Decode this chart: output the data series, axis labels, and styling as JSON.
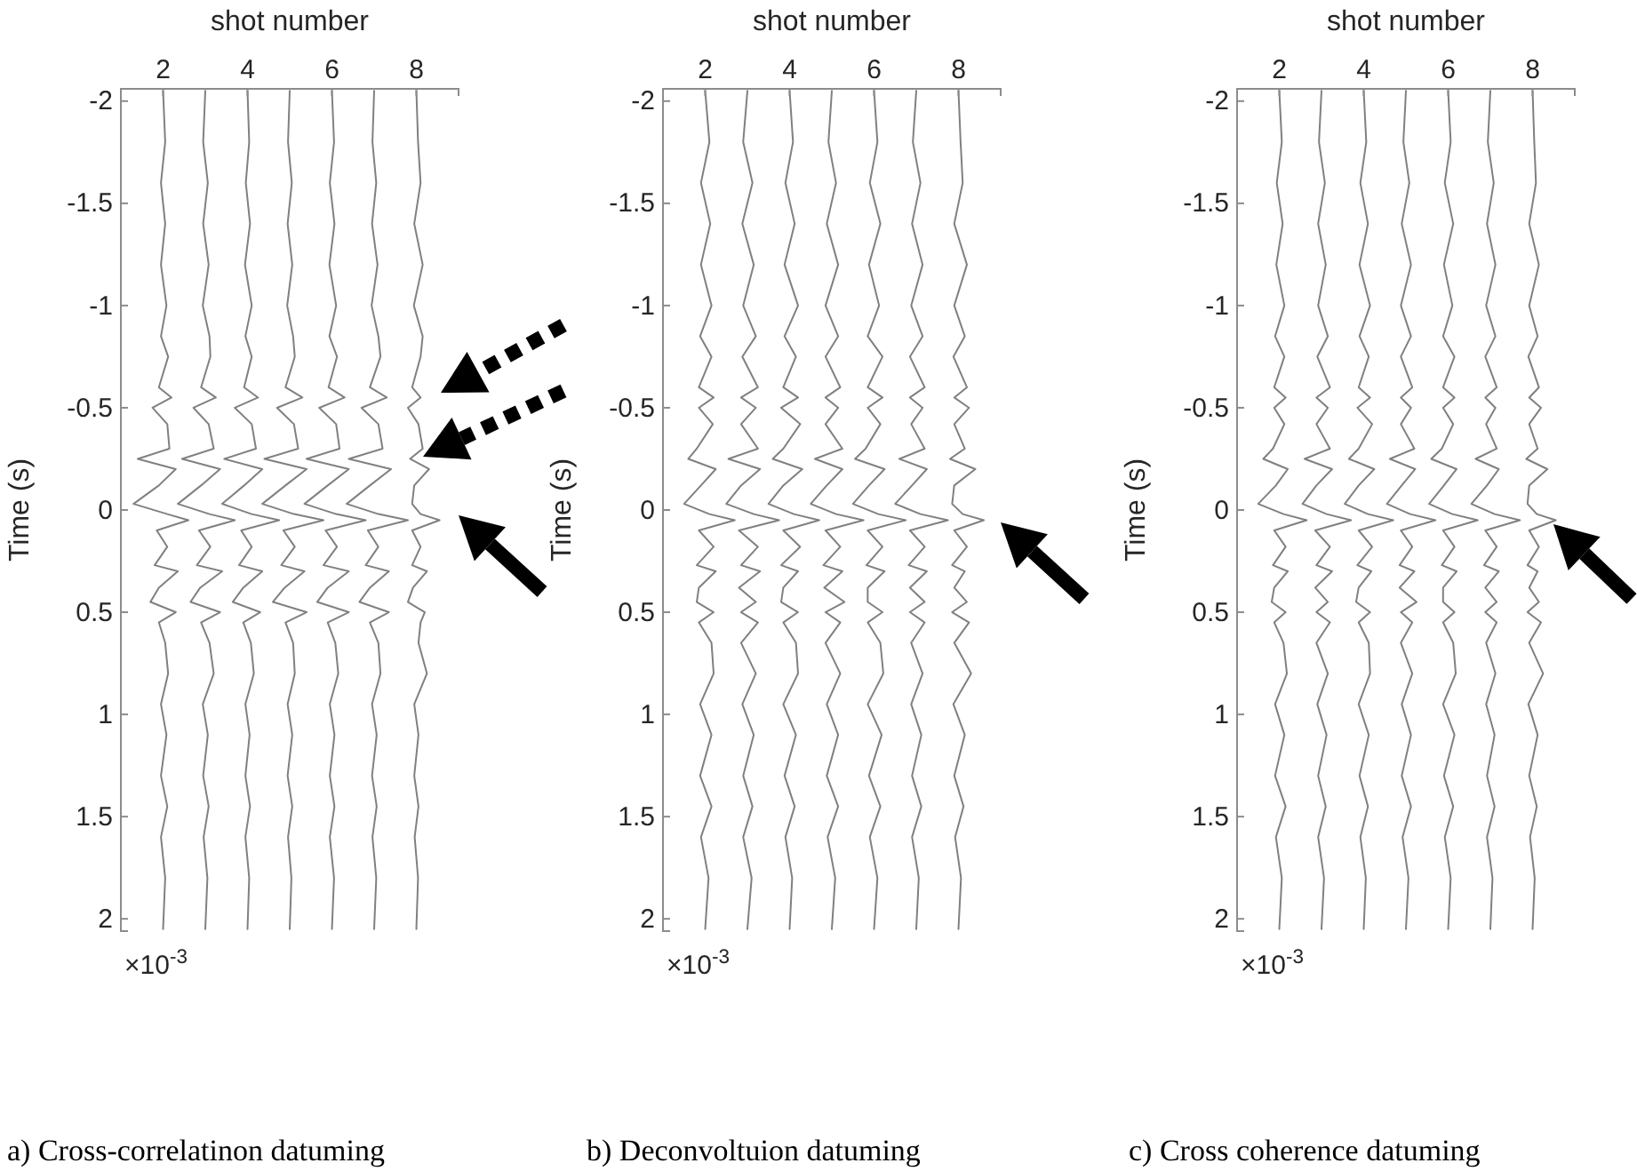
{
  "chart_data": [
    {
      "type": "line",
      "xlabel": "shot number",
      "ylabel": "Time (s)",
      "xlim": [
        1,
        9
      ],
      "xticks": [
        2,
        4,
        6,
        8
      ],
      "ylim": [
        2.06,
        -2.06
      ],
      "yticks": [
        -2,
        -1.5,
        -1,
        -0.5,
        0,
        0.5,
        1,
        1.5,
        2
      ],
      "annotations": [
        "×10$^{-3}$",
        "a) Cross-correlatinon datuming"
      ],
      "series": [
        {
          "color": "#808080",
          "x": [
            2,
            2.05,
            1.95,
            2.05,
            1.95,
            2.08,
            1.95,
            2.12,
            1.9,
            2.2,
            1.75,
            2.1,
            2.15,
            1.4,
            2.3,
            1.9,
            1.3,
            2.1,
            2.6,
            1.85,
            2.1,
            1.8,
            2.35,
            1.9,
            1.7,
            2.3,
            1.9,
            2.05,
            2.12,
            1.95,
            2.08,
            1.95,
            2.1,
            1.95,
            2.05,
            2
          ],
          "values": [
            -2.05,
            -1.8,
            -1.6,
            -1.4,
            -1.2,
            -1.0,
            -0.85,
            -0.75,
            -0.6,
            -0.55,
            -0.5,
            -0.42,
            -0.3,
            -0.25,
            -0.2,
            -0.12,
            -0.03,
            0.02,
            0.05,
            0.1,
            0.18,
            0.27,
            0.3,
            0.38,
            0.45,
            0.5,
            0.55,
            0.65,
            0.8,
            0.95,
            1.1,
            1.3,
            1.45,
            1.6,
            1.8,
            2.05
          ]
        },
        {
          "color": "#808080",
          "x": [
            3,
            2.95,
            3.06,
            2.95,
            3.08,
            2.94,
            3.1,
            3.12,
            2.9,
            3.25,
            2.72,
            3.08,
            3.2,
            2.45,
            3.35,
            2.9,
            2.35,
            3.1,
            3.7,
            2.85,
            3.12,
            2.8,
            3.4,
            2.88,
            2.65,
            3.35,
            2.9,
            3.1,
            3.2,
            2.94,
            3.06,
            2.95,
            3.08,
            2.96,
            3.05,
            3
          ],
          "values": [
            -2.05,
            -1.8,
            -1.6,
            -1.4,
            -1.2,
            -1.0,
            -0.85,
            -0.75,
            -0.6,
            -0.55,
            -0.5,
            -0.42,
            -0.3,
            -0.25,
            -0.2,
            -0.12,
            -0.03,
            0.02,
            0.05,
            0.1,
            0.18,
            0.27,
            0.3,
            0.38,
            0.45,
            0.5,
            0.55,
            0.65,
            0.8,
            0.95,
            1.1,
            1.3,
            1.45,
            1.6,
            1.8,
            2.05
          ]
        },
        {
          "color": "#808080",
          "x": [
            4,
            4.04,
            3.96,
            4.06,
            3.94,
            4.1,
            3.95,
            4.1,
            3.92,
            4.25,
            3.7,
            4.1,
            4.2,
            3.45,
            4.35,
            3.92,
            3.4,
            4.1,
            4.75,
            3.85,
            4.1,
            3.8,
            4.35,
            3.9,
            3.65,
            4.3,
            3.9,
            4.08,
            4.15,
            3.95,
            4.05,
            3.95,
            4.06,
            3.95,
            4.04,
            4
          ],
          "values": [
            -2.05,
            -1.8,
            -1.6,
            -1.4,
            -1.2,
            -1.0,
            -0.85,
            -0.75,
            -0.6,
            -0.55,
            -0.5,
            -0.42,
            -0.3,
            -0.25,
            -0.2,
            -0.12,
            -0.03,
            0.02,
            0.05,
            0.1,
            0.18,
            0.27,
            0.3,
            0.38,
            0.45,
            0.5,
            0.55,
            0.65,
            0.8,
            0.95,
            1.1,
            1.3,
            1.45,
            1.6,
            1.8,
            2.05
          ]
        },
        {
          "color": "#808080",
          "x": [
            5,
            4.96,
            5.05,
            4.95,
            5.06,
            4.94,
            5.08,
            5.12,
            4.9,
            5.3,
            4.7,
            5.1,
            5.2,
            4.4,
            5.4,
            4.9,
            4.35,
            5.1,
            5.8,
            4.85,
            5.12,
            4.8,
            5.35,
            4.88,
            4.6,
            5.4,
            4.9,
            5.08,
            5.12,
            4.95,
            5.06,
            4.95,
            5.06,
            4.96,
            5.04,
            5
          ],
          "values": [
            -2.05,
            -1.8,
            -1.6,
            -1.4,
            -1.2,
            -1.0,
            -0.85,
            -0.75,
            -0.6,
            -0.55,
            -0.5,
            -0.42,
            -0.3,
            -0.25,
            -0.2,
            -0.12,
            -0.03,
            0.02,
            0.05,
            0.1,
            0.18,
            0.27,
            0.3,
            0.38,
            0.45,
            0.5,
            0.55,
            0.65,
            0.8,
            0.95,
            1.1,
            1.3,
            1.45,
            1.6,
            1.8,
            2.05
          ]
        },
        {
          "color": "#808080",
          "x": [
            6,
            6.05,
            5.95,
            6.06,
            5.94,
            6.1,
            5.94,
            6.12,
            5.92,
            6.3,
            5.7,
            6.1,
            6.18,
            5.4,
            6.4,
            5.9,
            5.35,
            6.1,
            6.8,
            5.85,
            6.12,
            5.8,
            6.4,
            5.9,
            5.65,
            6.4,
            5.9,
            6.08,
            6.15,
            5.95,
            6.06,
            5.95,
            6.06,
            5.95,
            6.05,
            6
          ],
          "values": [
            -2.05,
            -1.8,
            -1.6,
            -1.4,
            -1.2,
            -1.0,
            -0.85,
            -0.75,
            -0.6,
            -0.55,
            -0.5,
            -0.42,
            -0.3,
            -0.25,
            -0.2,
            -0.12,
            -0.03,
            0.02,
            0.05,
            0.1,
            0.18,
            0.27,
            0.3,
            0.38,
            0.45,
            0.5,
            0.55,
            0.65,
            0.8,
            0.95,
            1.1,
            1.3,
            1.45,
            1.6,
            1.8,
            2.05
          ]
        },
        {
          "color": "#808080",
          "x": [
            7,
            6.96,
            7.05,
            6.95,
            7.08,
            6.94,
            7.1,
            7.15,
            6.9,
            7.3,
            6.7,
            7.1,
            7.2,
            6.4,
            7.4,
            6.9,
            6.35,
            7.1,
            7.8,
            6.85,
            7.1,
            6.8,
            7.35,
            6.9,
            6.65,
            7.35,
            6.9,
            7.1,
            7.15,
            6.95,
            7.06,
            6.95,
            7.06,
            6.96,
            7.05,
            7
          ],
          "values": [
            -2.05,
            -1.8,
            -1.6,
            -1.4,
            -1.2,
            -1.0,
            -0.85,
            -0.75,
            -0.6,
            -0.55,
            -0.5,
            -0.42,
            -0.3,
            -0.25,
            -0.2,
            -0.12,
            -0.03,
            0.02,
            0.05,
            0.1,
            0.18,
            0.27,
            0.3,
            0.38,
            0.45,
            0.5,
            0.55,
            0.65,
            0.8,
            0.95,
            1.1,
            1.3,
            1.45,
            1.6,
            1.8,
            2.05
          ]
        },
        {
          "color": "#808080",
          "x": [
            8,
            8.04,
            8.1,
            7.95,
            8.15,
            7.94,
            8.15,
            8.1,
            7.9,
            8.1,
            7.8,
            8.05,
            8.15,
            7.85,
            8.3,
            7.95,
            7.9,
            8.1,
            8.55,
            7.9,
            8.1,
            7.9,
            8.25,
            7.92,
            7.8,
            8.2,
            8.1,
            8.05,
            8.25,
            7.95,
            8.05,
            7.95,
            8.05,
            7.96,
            8.04,
            8
          ],
          "values": [
            -2.05,
            -1.8,
            -1.6,
            -1.4,
            -1.2,
            -1.0,
            -0.85,
            -0.75,
            -0.6,
            -0.55,
            -0.5,
            -0.42,
            -0.3,
            -0.25,
            -0.2,
            -0.12,
            -0.03,
            0.02,
            0.05,
            0.1,
            0.18,
            0.27,
            0.3,
            0.38,
            0.45,
            0.5,
            0.55,
            0.65,
            0.8,
            0.95,
            1.1,
            1.3,
            1.45,
            1.6,
            1.8,
            2.05
          ]
        }
      ]
    },
    {
      "type": "line",
      "xlabel": "shot number",
      "ylabel": "Time (s)",
      "xlim": [
        1,
        9
      ],
      "xticks": [
        2,
        4,
        6,
        8
      ],
      "ylim": [
        2.06,
        -2.06
      ],
      "yticks": [
        -2,
        -1.5,
        -1,
        -0.5,
        0,
        0.5,
        1,
        1.5,
        2
      ],
      "annotations": [
        "×10$^{-3}$",
        "b) Deconvoltuion datuming"
      ],
      "series": [
        {
          "color": "#808080",
          "x": [
            2,
            2.1,
            1.9,
            2.12,
            1.9,
            2.15,
            1.88,
            2.15,
            1.85,
            2.2,
            1.85,
            2.18,
            1.8,
            1.6,
            2.25,
            1.9,
            1.5,
            2.1,
            2.7,
            1.85,
            2.2,
            1.8,
            2.25,
            1.85,
            1.8,
            2.2,
            1.85,
            2.15,
            2.2,
            1.88,
            2.15,
            1.88,
            2.15,
            1.9,
            2.08,
            2
          ],
          "values": [
            -2.05,
            -1.8,
            -1.6,
            -1.4,
            -1.2,
            -1.0,
            -0.85,
            -0.75,
            -0.6,
            -0.55,
            -0.5,
            -0.42,
            -0.3,
            -0.25,
            -0.2,
            -0.12,
            -0.03,
            0.02,
            0.05,
            0.1,
            0.18,
            0.27,
            0.3,
            0.38,
            0.45,
            0.5,
            0.55,
            0.65,
            0.8,
            0.95,
            1.1,
            1.3,
            1.45,
            1.6,
            1.8,
            2.05
          ]
        },
        {
          "color": "#808080",
          "x": [
            3,
            2.9,
            3.12,
            2.88,
            3.15,
            2.9,
            3.2,
            2.88,
            3.25,
            2.85,
            3.2,
            2.85,
            3.25,
            2.55,
            3.3,
            2.85,
            2.5,
            3.15,
            3.75,
            2.8,
            3.25,
            2.85,
            3.3,
            2.8,
            3.2,
            2.85,
            3.25,
            2.85,
            3.2,
            2.88,
            3.15,
            2.9,
            3.12,
            2.9,
            3.1,
            3
          ],
          "values": [
            -2.05,
            -1.8,
            -1.6,
            -1.4,
            -1.2,
            -1.0,
            -0.85,
            -0.75,
            -0.6,
            -0.55,
            -0.5,
            -0.42,
            -0.3,
            -0.25,
            -0.2,
            -0.12,
            -0.03,
            0.02,
            0.05,
            0.1,
            0.18,
            0.27,
            0.3,
            0.38,
            0.45,
            0.5,
            0.55,
            0.65,
            0.8,
            0.95,
            1.1,
            1.3,
            1.45,
            1.6,
            1.8,
            2.05
          ]
        },
        {
          "color": "#808080",
          "x": [
            4,
            4.08,
            3.9,
            4.12,
            3.88,
            4.2,
            3.88,
            4.15,
            3.85,
            4.2,
            3.8,
            4.25,
            3.85,
            3.6,
            4.3,
            3.85,
            3.5,
            4.1,
            4.7,
            3.85,
            4.25,
            3.8,
            4.2,
            3.85,
            3.8,
            4.2,
            3.85,
            4.15,
            4.2,
            3.85,
            4.15,
            3.88,
            4.12,
            3.9,
            4.06,
            4
          ],
          "values": [
            -2.05,
            -1.8,
            -1.6,
            -1.4,
            -1.2,
            -1.0,
            -0.85,
            -0.75,
            -0.6,
            -0.55,
            -0.5,
            -0.42,
            -0.3,
            -0.25,
            -0.2,
            -0.12,
            -0.03,
            0.02,
            0.05,
            0.1,
            0.18,
            0.27,
            0.3,
            0.38,
            0.45,
            0.5,
            0.55,
            0.65,
            0.8,
            0.95,
            1.1,
            1.3,
            1.45,
            1.6,
            1.8,
            2.05
          ]
        },
        {
          "color": "#808080",
          "x": [
            5,
            4.92,
            5.1,
            4.88,
            5.15,
            4.85,
            5.15,
            4.85,
            5.2,
            4.85,
            5.15,
            4.85,
            5.25,
            4.6,
            5.25,
            4.88,
            4.5,
            5.1,
            5.75,
            4.85,
            5.2,
            4.8,
            5.25,
            4.82,
            5.3,
            4.85,
            5.2,
            4.85,
            5.2,
            4.88,
            5.15,
            4.88,
            5.15,
            4.9,
            5.08,
            5
          ],
          "values": [
            -2.05,
            -1.8,
            -1.6,
            -1.4,
            -1.2,
            -1.0,
            -0.85,
            -0.75,
            -0.6,
            -0.55,
            -0.5,
            -0.42,
            -0.3,
            -0.25,
            -0.2,
            -0.12,
            -0.03,
            0.02,
            0.05,
            0.1,
            0.18,
            0.27,
            0.3,
            0.38,
            0.45,
            0.5,
            0.55,
            0.65,
            0.8,
            0.95,
            1.1,
            1.3,
            1.45,
            1.6,
            1.8,
            2.05
          ]
        },
        {
          "color": "#808080",
          "x": [
            6,
            6.08,
            5.9,
            6.15,
            5.88,
            6.12,
            5.85,
            6.2,
            5.85,
            6.2,
            5.85,
            6.15,
            5.8,
            5.55,
            6.25,
            5.88,
            5.5,
            6.1,
            6.75,
            5.85,
            6.2,
            5.82,
            6.25,
            5.85,
            5.85,
            6.2,
            5.85,
            6.15,
            6.22,
            5.85,
            6.18,
            5.88,
            6.15,
            5.9,
            6.08,
            6
          ],
          "values": [
            -2.05,
            -1.8,
            -1.6,
            -1.4,
            -1.2,
            -1.0,
            -0.85,
            -0.75,
            -0.6,
            -0.55,
            -0.5,
            -0.42,
            -0.3,
            -0.25,
            -0.2,
            -0.12,
            -0.03,
            0.02,
            0.05,
            0.1,
            0.18,
            0.27,
            0.3,
            0.38,
            0.45,
            0.5,
            0.55,
            0.65,
            0.8,
            0.95,
            1.1,
            1.3,
            1.45,
            1.6,
            1.8,
            2.05
          ]
        },
        {
          "color": "#808080",
          "x": [
            7,
            6.92,
            7.1,
            6.9,
            7.15,
            6.88,
            7.15,
            6.85,
            7.2,
            6.85,
            7.15,
            6.88,
            7.2,
            6.6,
            7.25,
            6.9,
            6.5,
            7.1,
            7.75,
            6.85,
            7.2,
            6.82,
            7.25,
            6.85,
            7.2,
            6.85,
            7.2,
            6.88,
            7.15,
            6.88,
            7.12,
            6.9,
            7.12,
            6.9,
            7.06,
            7
          ],
          "values": [
            -2.05,
            -1.8,
            -1.6,
            -1.4,
            -1.2,
            -1.0,
            -0.85,
            -0.75,
            -0.6,
            -0.55,
            -0.5,
            -0.42,
            -0.3,
            -0.25,
            -0.2,
            -0.12,
            -0.03,
            0.02,
            0.05,
            0.1,
            0.18,
            0.27,
            0.3,
            0.38,
            0.45,
            0.5,
            0.55,
            0.65,
            0.8,
            0.95,
            1.1,
            1.3,
            1.45,
            1.6,
            1.8,
            2.05
          ]
        },
        {
          "color": "#808080",
          "x": [
            8,
            8.05,
            8.1,
            7.9,
            8.2,
            7.9,
            8.15,
            7.88,
            8.2,
            7.9,
            8.25,
            7.9,
            8.15,
            7.8,
            8.4,
            7.9,
            7.85,
            8.1,
            8.6,
            7.9,
            8.2,
            7.85,
            8.15,
            7.9,
            8.2,
            7.85,
            8.25,
            7.9,
            8.3,
            7.88,
            8.15,
            7.9,
            8.12,
            7.92,
            8.06,
            8
          ],
          "values": [
            -2.05,
            -1.8,
            -1.6,
            -1.4,
            -1.2,
            -1.0,
            -0.85,
            -0.75,
            -0.6,
            -0.55,
            -0.5,
            -0.42,
            -0.3,
            -0.25,
            -0.2,
            -0.12,
            -0.03,
            0.02,
            0.05,
            0.1,
            0.18,
            0.27,
            0.3,
            0.38,
            0.45,
            0.5,
            0.55,
            0.65,
            0.8,
            0.95,
            1.1,
            1.3,
            1.45,
            1.6,
            1.8,
            2.05
          ]
        }
      ]
    },
    {
      "type": "line",
      "xlabel": "shot number",
      "ylabel": "Time (s)",
      "xlim": [
        1,
        9
      ],
      "xticks": [
        2,
        4,
        6,
        8
      ],
      "ylim": [
        2.06,
        -2.06
      ],
      "yticks": [
        -2,
        -1.5,
        -1,
        -0.5,
        0,
        0.5,
        1,
        1.5,
        2
      ],
      "annotations": [
        "×10$^{-3}$",
        "c)  Cross coherence datuming"
      ],
      "series": [
        {
          "color": "#808080",
          "x": [
            2,
            2.06,
            1.94,
            2.08,
            1.93,
            2.12,
            1.9,
            2.12,
            1.88,
            2.15,
            1.88,
            2.12,
            1.85,
            1.62,
            2.2,
            1.92,
            1.5,
            2.1,
            2.65,
            1.88,
            2.15,
            1.85,
            2.2,
            1.88,
            1.82,
            2.15,
            1.88,
            2.1,
            2.18,
            1.9,
            2.12,
            1.9,
            2.15,
            1.92,
            2.06,
            2
          ],
          "values": [
            -2.05,
            -1.8,
            -1.6,
            -1.4,
            -1.2,
            -1.0,
            -0.85,
            -0.75,
            -0.6,
            -0.55,
            -0.5,
            -0.42,
            -0.3,
            -0.25,
            -0.2,
            -0.12,
            -0.03,
            0.02,
            0.05,
            0.1,
            0.18,
            0.27,
            0.3,
            0.38,
            0.45,
            0.5,
            0.55,
            0.65,
            0.8,
            0.95,
            1.1,
            1.3,
            1.45,
            1.6,
            1.8,
            2.05
          ]
        },
        {
          "color": "#808080",
          "x": [
            3,
            2.94,
            3.08,
            2.92,
            3.1,
            2.92,
            3.15,
            2.9,
            3.2,
            2.88,
            3.15,
            2.88,
            3.2,
            2.6,
            3.25,
            2.88,
            2.55,
            3.12,
            3.7,
            2.85,
            3.2,
            2.88,
            3.25,
            2.85,
            3.15,
            2.88,
            3.2,
            2.88,
            3.15,
            2.9,
            3.12,
            2.92,
            3.1,
            2.92,
            3.06,
            3
          ],
          "values": [
            -2.05,
            -1.8,
            -1.6,
            -1.4,
            -1.2,
            -1.0,
            -0.85,
            -0.75,
            -0.6,
            -0.55,
            -0.5,
            -0.42,
            -0.3,
            -0.25,
            -0.2,
            -0.12,
            -0.03,
            0.02,
            0.05,
            0.1,
            0.18,
            0.27,
            0.3,
            0.38,
            0.45,
            0.5,
            0.55,
            0.65,
            0.8,
            0.95,
            1.1,
            1.3,
            1.45,
            1.6,
            1.8,
            2.05
          ]
        },
        {
          "color": "#808080",
          "x": [
            4,
            4.06,
            3.92,
            4.1,
            3.9,
            4.15,
            3.9,
            4.12,
            3.88,
            4.15,
            3.85,
            4.2,
            3.88,
            3.65,
            4.25,
            3.88,
            3.55,
            4.1,
            4.7,
            3.88,
            4.2,
            3.85,
            4.18,
            3.88,
            3.82,
            4.15,
            3.88,
            4.12,
            4.15,
            3.88,
            4.12,
            3.9,
            4.1,
            3.92,
            4.05,
            4
          ],
          "values": [
            -2.05,
            -1.8,
            -1.6,
            -1.4,
            -1.2,
            -1.0,
            -0.85,
            -0.75,
            -0.6,
            -0.55,
            -0.5,
            -0.42,
            -0.3,
            -0.25,
            -0.2,
            -0.12,
            -0.03,
            0.02,
            0.05,
            0.1,
            0.18,
            0.27,
            0.3,
            0.38,
            0.45,
            0.5,
            0.55,
            0.65,
            0.8,
            0.95,
            1.1,
            1.3,
            1.45,
            1.6,
            1.8,
            2.05
          ]
        },
        {
          "color": "#808080",
          "x": [
            5,
            4.94,
            5.08,
            4.9,
            5.12,
            4.88,
            5.12,
            4.88,
            5.15,
            4.88,
            5.12,
            4.88,
            5.2,
            4.62,
            5.22,
            4.9,
            4.55,
            5.1,
            5.7,
            4.88,
            5.15,
            4.85,
            5.2,
            4.85,
            5.25,
            4.88,
            5.15,
            4.88,
            5.15,
            4.9,
            5.12,
            4.9,
            5.12,
            4.92,
            5.06,
            5
          ],
          "values": [
            -2.05,
            -1.8,
            -1.6,
            -1.4,
            -1.2,
            -1.0,
            -0.85,
            -0.75,
            -0.6,
            -0.55,
            -0.5,
            -0.42,
            -0.3,
            -0.25,
            -0.2,
            -0.12,
            -0.03,
            0.02,
            0.05,
            0.1,
            0.18,
            0.27,
            0.3,
            0.38,
            0.45,
            0.5,
            0.55,
            0.65,
            0.8,
            0.95,
            1.1,
            1.3,
            1.45,
            1.6,
            1.8,
            2.05
          ]
        },
        {
          "color": "#808080",
          "x": [
            6,
            6.06,
            5.92,
            6.12,
            5.9,
            6.1,
            5.88,
            6.15,
            5.88,
            6.15,
            5.88,
            6.12,
            5.85,
            5.6,
            6.2,
            5.9,
            5.55,
            6.1,
            6.7,
            5.88,
            6.15,
            5.85,
            6.2,
            5.88,
            5.88,
            6.15,
            5.88,
            6.12,
            6.18,
            5.88,
            6.15,
            5.9,
            6.12,
            5.92,
            6.06,
            6
          ],
          "values": [
            -2.05,
            -1.8,
            -1.6,
            -1.4,
            -1.2,
            -1.0,
            -0.85,
            -0.75,
            -0.6,
            -0.55,
            -0.5,
            -0.42,
            -0.3,
            -0.25,
            -0.2,
            -0.12,
            -0.03,
            0.02,
            0.05,
            0.1,
            0.18,
            0.27,
            0.3,
            0.38,
            0.45,
            0.5,
            0.55,
            0.65,
            0.8,
            0.95,
            1.1,
            1.3,
            1.45,
            1.6,
            1.8,
            2.05
          ]
        },
        {
          "color": "#808080",
          "x": [
            7,
            6.94,
            7.08,
            6.92,
            7.12,
            6.9,
            7.12,
            6.88,
            7.15,
            6.88,
            7.12,
            6.9,
            7.15,
            6.65,
            7.2,
            6.92,
            6.55,
            7.1,
            7.7,
            6.88,
            7.15,
            6.85,
            7.2,
            6.88,
            7.15,
            6.88,
            7.15,
            6.9,
            7.12,
            6.9,
            7.1,
            6.92,
            7.1,
            6.92,
            7.05,
            7
          ],
          "values": [
            -2.05,
            -1.8,
            -1.6,
            -1.4,
            -1.2,
            -1.0,
            -0.85,
            -0.75,
            -0.6,
            -0.55,
            -0.5,
            -0.42,
            -0.3,
            -0.25,
            -0.2,
            -0.12,
            -0.03,
            0.02,
            0.05,
            0.1,
            0.18,
            0.27,
            0.3,
            0.38,
            0.45,
            0.5,
            0.55,
            0.65,
            0.8,
            0.95,
            1.1,
            1.3,
            1.45,
            1.6,
            1.8,
            2.05
          ]
        },
        {
          "color": "#808080",
          "x": [
            8,
            8.04,
            8.08,
            7.92,
            8.15,
            7.92,
            8.12,
            7.9,
            8.15,
            7.92,
            8.2,
            7.92,
            8.12,
            7.85,
            8.35,
            7.92,
            7.88,
            8.1,
            8.55,
            7.92,
            8.15,
            7.88,
            8.12,
            7.92,
            8.15,
            7.88,
            8.2,
            7.92,
            8.25,
            7.9,
            8.12,
            7.92,
            8.1,
            7.94,
            8.05,
            8
          ],
          "values": [
            -2.05,
            -1.8,
            -1.6,
            -1.4,
            -1.2,
            -1.0,
            -0.85,
            -0.75,
            -0.6,
            -0.55,
            -0.5,
            -0.42,
            -0.3,
            -0.25,
            -0.2,
            -0.12,
            -0.03,
            0.02,
            0.05,
            0.1,
            0.18,
            0.27,
            0.3,
            0.38,
            0.45,
            0.5,
            0.55,
            0.65,
            0.8,
            0.95,
            1.1,
            1.3,
            1.45,
            1.6,
            1.8,
            2.05
          ]
        }
      ]
    }
  ]
}
